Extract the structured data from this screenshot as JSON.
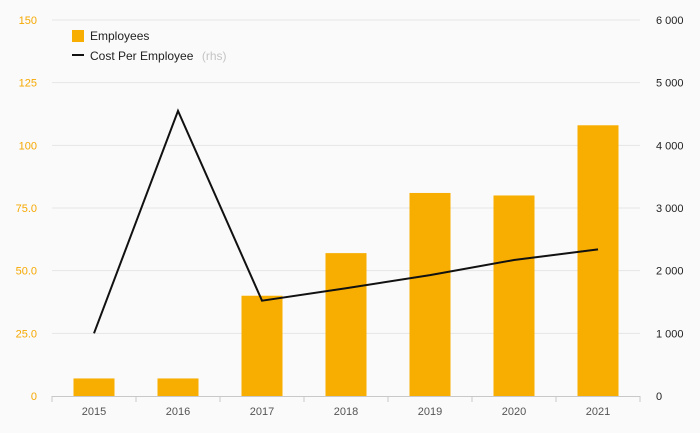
{
  "chart_data": {
    "type": "bar+line",
    "categories": [
      "2015",
      "2016",
      "2017",
      "2018",
      "2019",
      "2020",
      "2021"
    ],
    "series": [
      {
        "name": "Employees",
        "type": "bar",
        "axis": "left",
        "color": "#f8ae00",
        "values": [
          7,
          7,
          40,
          57,
          81,
          80,
          108
        ]
      },
      {
        "name": "Cost Per Employee",
        "name_suffix": "(rhs)",
        "type": "line",
        "axis": "right",
        "color": "#111111",
        "values": [
          1000,
          4550,
          1520,
          1720,
          1930,
          2170,
          2340
        ]
      }
    ],
    "y_left": {
      "lim": [
        0,
        150
      ],
      "ticks": [
        0,
        25,
        50,
        75,
        100,
        125,
        150
      ],
      "tick_labels": [
        "0",
        "25.0",
        "50.0",
        "75.0",
        "100",
        "125",
        "150"
      ],
      "color": "#f5a800"
    },
    "y_right": {
      "lim": [
        0,
        6000
      ],
      "ticks": [
        0,
        1000,
        2000,
        3000,
        4000,
        5000,
        6000
      ],
      "tick_labels": [
        "0",
        "1 000",
        "2 000",
        "3 000",
        "4 000",
        "5 000",
        "6 000"
      ]
    },
    "grid": true,
    "legend": "top-left"
  }
}
